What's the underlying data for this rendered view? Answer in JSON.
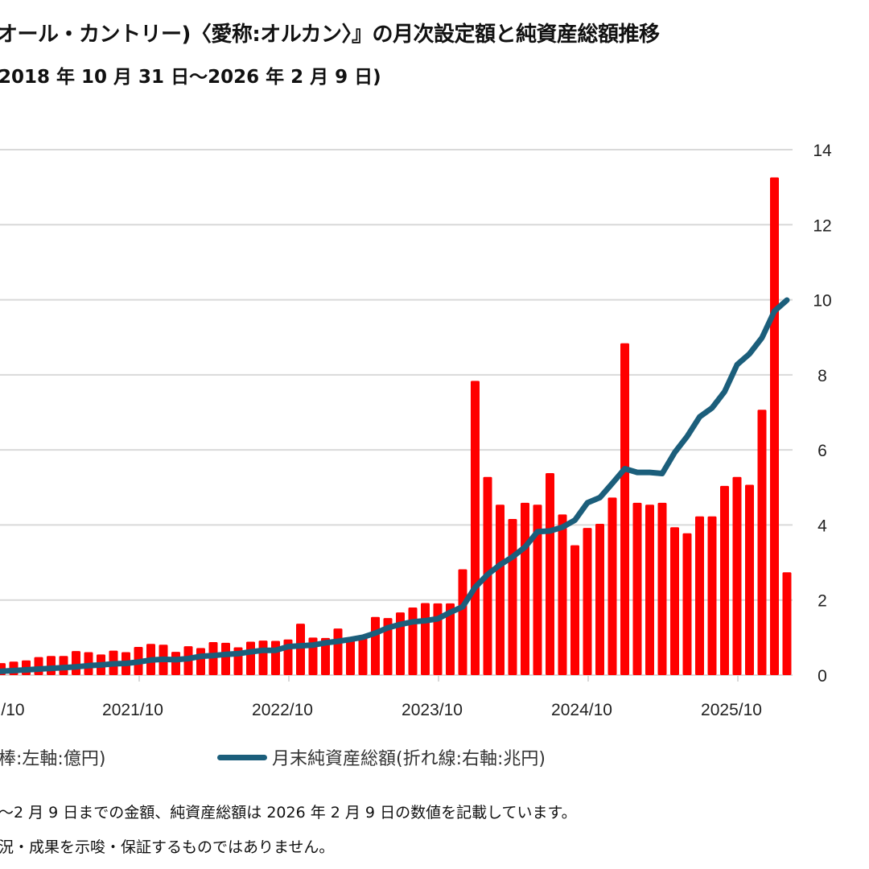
{
  "title": "オール・カントリー)〈愛称:オルカン〉』の月次設定額と純資産総額推移",
  "subtitle": "2018 年 10 月 31 日～2026 年 2 月 9 日)",
  "colors": {
    "bar": "#ff0000",
    "line": "#1b5e7b",
    "grid": "#d9d9d9"
  },
  "legend": {
    "bars_label": "棒:左軸:億円)",
    "line_label": "月末純資産総額(折れ線:右軸:兆円)"
  },
  "notes": [
    "～2 月 9 日までの金額、純資産総額は 2026 年 2 月 9 日の数値を記載しています。",
    "況・成果を示唆・保証するものではありません。"
  ],
  "chart_data": {
    "type": "bar+line",
    "grid": true,
    "legend_placement": "bottom",
    "x_tick_labels": [
      "/10",
      "2021/10",
      "2022/10",
      "2023/10",
      "2024/10",
      "2025/10"
    ],
    "x_tick_months": [
      "2020/10",
      "2021/10",
      "2022/10",
      "2023/10",
      "2024/10",
      "2025/10"
    ],
    "y_right": {
      "unit": "兆円",
      "range": [
        0,
        14
      ],
      "ticks": [
        "0",
        "2",
        "4",
        "6",
        "8",
        "10",
        "12",
        "14"
      ]
    },
    "y_left": {
      "unit": "億円",
      "range": [
        0,
        7000
      ]
    },
    "months": [
      "2020/10",
      "2020/11",
      "2020/12",
      "2021/01",
      "2021/02",
      "2021/03",
      "2021/04",
      "2021/05",
      "2021/06",
      "2021/07",
      "2021/08",
      "2021/09",
      "2021/10",
      "2021/11",
      "2021/12",
      "2022/01",
      "2022/02",
      "2022/03",
      "2022/04",
      "2022/05",
      "2022/06",
      "2022/07",
      "2022/08",
      "2022/09",
      "2022/10",
      "2022/11",
      "2022/12",
      "2023/01",
      "2023/02",
      "2023/03",
      "2023/04",
      "2023/05",
      "2023/06",
      "2023/07",
      "2023/08",
      "2023/09",
      "2023/10",
      "2023/11",
      "2023/12",
      "2024/01",
      "2024/02",
      "2024/03",
      "2024/04",
      "2024/05",
      "2024/06",
      "2024/07",
      "2024/08",
      "2024/09",
      "2024/10",
      "2024/11",
      "2024/12",
      "2025/01",
      "2025/02",
      "2025/03",
      "2025/04",
      "2025/05",
      "2025/06",
      "2025/07",
      "2025/08",
      "2025/09",
      "2025/10",
      "2025/11",
      "2025/12",
      "2026/01",
      "2026/02"
    ],
    "series": [
      {
        "name": "棒:左軸:億円)",
        "type": "bar",
        "axis": "left",
        "values": [
          115,
          160,
          180,
          195,
          240,
          255,
          255,
          320,
          305,
          275,
          325,
          305,
          375,
          415,
          405,
          310,
          385,
          360,
          440,
          430,
          370,
          445,
          460,
          455,
          475,
          685,
          500,
          495,
          620,
          495,
          525,
          775,
          760,
          835,
          900,
          960,
          955,
          955,
          1410,
          3920,
          2640,
          2270,
          2080,
          2295,
          2270,
          2690,
          2140,
          1730,
          1960,
          2015,
          2365,
          4420,
          2295,
          2270,
          2295,
          1970,
          1890,
          2115,
          2115,
          2520,
          2640,
          2535,
          3535,
          6630,
          1370
        ]
      },
      {
        "name": "月末純資産総額(折れ線:右軸:兆円)",
        "type": "line",
        "axis": "right",
        "values": [
          0.09,
          0.1,
          0.12,
          0.14,
          0.16,
          0.18,
          0.2,
          0.22,
          0.25,
          0.27,
          0.3,
          0.31,
          0.35,
          0.4,
          0.42,
          0.41,
          0.44,
          0.5,
          0.52,
          0.55,
          0.57,
          0.62,
          0.66,
          0.66,
          0.76,
          0.78,
          0.8,
          0.86,
          0.9,
          0.95,
          1.01,
          1.12,
          1.26,
          1.35,
          1.42,
          1.45,
          1.5,
          1.67,
          1.82,
          2.34,
          2.68,
          2.94,
          3.15,
          3.41,
          3.82,
          3.84,
          3.94,
          4.13,
          4.59,
          4.73,
          5.11,
          5.5,
          5.4,
          5.4,
          5.37,
          5.93,
          6.36,
          6.88,
          7.12,
          7.55,
          8.27,
          8.56,
          8.99,
          9.7,
          9.99
        ]
      }
    ]
  }
}
